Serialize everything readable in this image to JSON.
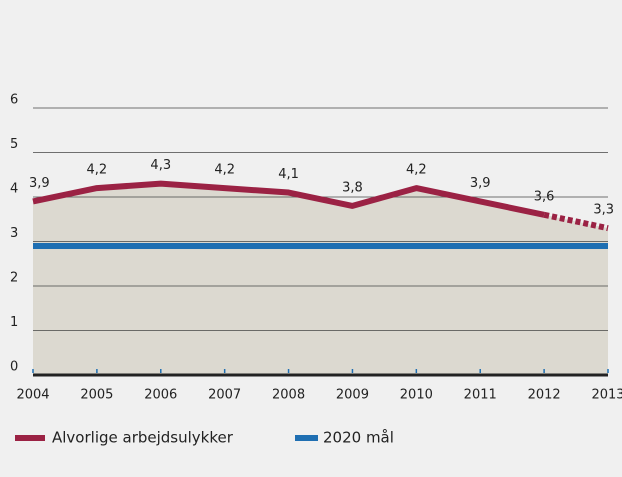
{
  "chart_data": {
    "type": "line",
    "categories": [
      "2004",
      "2005",
      "2006",
      "2007",
      "2008",
      "2009",
      "2010",
      "2011",
      "2012",
      "2013"
    ],
    "series": [
      {
        "name": "Alvorlige arbejdsulykker",
        "color": "#9b2244",
        "values": [
          3.9,
          4.2,
          4.3,
          4.2,
          4.1,
          3.8,
          4.2,
          3.9,
          3.6,
          3.3
        ],
        "value_labels": [
          "3,9",
          "4,2",
          "4,3",
          "4,2",
          "4,1",
          "3,8",
          "4,2",
          "3,9",
          "3,6",
          "3,3"
        ],
        "area_color": "#dcd9d0",
        "dashed_last": true
      },
      {
        "name": "2020 mål",
        "color": "#1f6fb2",
        "values": [
          2.9,
          2.9,
          2.9,
          2.9,
          2.9,
          2.9,
          2.9,
          2.9,
          2.9,
          2.9
        ]
      }
    ],
    "ylim": [
      0,
      6
    ],
    "yticks": [
      0,
      1,
      2,
      3,
      4,
      5,
      6
    ],
    "grid": true,
    "legend": "bottom"
  }
}
